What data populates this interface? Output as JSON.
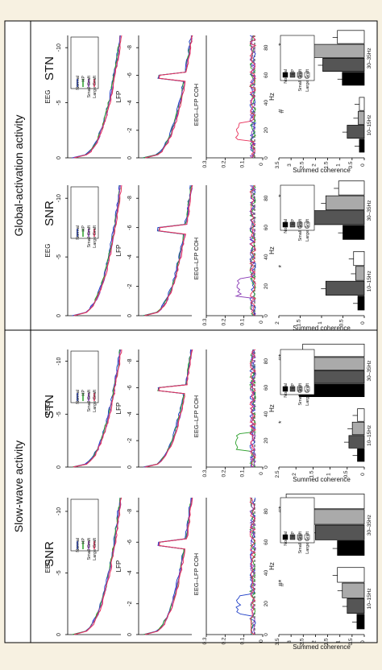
{
  "sections": [
    {
      "title": "Slow-wave activity",
      "key": "slow"
    },
    {
      "title": "Global-activation activity",
      "key": "global"
    }
  ],
  "legend": {
    "items": [
      "Normal",
      "HP",
      "Small Graft",
      "Large Graft"
    ],
    "line_colors": [
      "#2040c8",
      "#2ca02c",
      "#8a3bb5",
      "#e8305a"
    ],
    "bar_fills": [
      "#000000",
      "#555555",
      "#aaaaaa",
      "#ffffff"
    ]
  },
  "labels": {
    "eeg": "EEG",
    "lfp": "LFP",
    "coh": "EEG–LFP COH",
    "hz": "Hz",
    "summed": "Summed coherence",
    "band1": "10–15Hz",
    "band2": "30–35Hz",
    "star": "*",
    "hash": "#"
  },
  "chart_data": [
    {
      "type": "bar",
      "section": "Slow-wave activity",
      "title": "SNR",
      "categories": [
        "10–15Hz",
        "30–35Hz"
      ],
      "series": [
        {
          "name": "Normal",
          "values": [
            0.3,
            1.1
          ]
        },
        {
          "name": "HP",
          "values": [
            0.7,
            2.0
          ]
        },
        {
          "name": "Small Graft",
          "values": [
            0.9,
            2.4
          ]
        },
        {
          "name": "Large Graft",
          "values": [
            1.1,
            3.2
          ]
        }
      ],
      "ylabel": "Summed coherence",
      "ylim": [
        0,
        3.5
      ],
      "yticks": [
        "0",
        "0.5",
        "1",
        "1.5",
        "2",
        "2.5",
        "3",
        "3.5"
      ],
      "markers": [
        "#*",
        "#*"
      ],
      "line_panels": [
        {
          "ylabel": "EEG",
          "yticks": [
            "0",
            "-5",
            "-10"
          ]
        },
        {
          "ylabel": "LFP",
          "yticks": [
            "0",
            "-2",
            "-4",
            "-6",
            "-8"
          ]
        },
        {
          "ylabel": "EEG–LFP COH",
          "yticks": [
            "0",
            "0.1",
            "0.2",
            "0.3"
          ],
          "xticks": [
            "0",
            "20",
            "40",
            "60",
            "80"
          ],
          "xlabel": "Hz"
        }
      ]
    },
    {
      "type": "bar",
      "section": "Slow-wave activity",
      "title": "STN",
      "categories": [
        "10–15Hz",
        "30–35Hz"
      ],
      "series": [
        {
          "name": "Normal",
          "values": [
            0.2,
            1.9
          ]
        },
        {
          "name": "HP",
          "values": [
            0.45,
            1.95
          ]
        },
        {
          "name": "Small Graft",
          "values": [
            0.35,
            1.85
          ]
        },
        {
          "name": "Large Graft",
          "values": [
            0.2,
            1.8
          ]
        }
      ],
      "ylabel": "Summed coherence",
      "ylim": [
        0,
        2.5
      ],
      "yticks": [
        "0",
        "0.5",
        "1",
        "1.5",
        "2",
        "2.5"
      ],
      "markers": [
        "*",
        "#*"
      ],
      "line_panels": [
        {
          "ylabel": "EEG",
          "yticks": [
            "0",
            "-5",
            "-10"
          ]
        },
        {
          "ylabel": "LFP",
          "yticks": [
            "0",
            "-2",
            "-4",
            "-6",
            "-8"
          ]
        },
        {
          "ylabel": "EEG–LFP COH",
          "yticks": [
            "0",
            "0.1",
            "0.2",
            "0.3"
          ],
          "xticks": [
            "0",
            "20",
            "40",
            "60",
            "80"
          ],
          "xlabel": "Hz"
        }
      ]
    },
    {
      "type": "bar",
      "section": "Global-activation activity",
      "title": "SNR",
      "categories": [
        "10–15Hz",
        "30–35Hz"
      ],
      "series": [
        {
          "name": "Normal",
          "values": [
            0.15,
            0.5
          ]
        },
        {
          "name": "HP",
          "values": [
            0.9,
            1.6
          ]
        },
        {
          "name": "Small Graft",
          "values": [
            0.2,
            0.9
          ]
        },
        {
          "name": "Large Graft",
          "values": [
            0.25,
            0.6
          ]
        }
      ],
      "ylabel": "Summed coherence",
      "ylim": [
        0,
        2
      ],
      "yticks": [
        "0",
        "0.5",
        "1",
        "1.5",
        "2"
      ],
      "markers": [
        "*",
        "*"
      ],
      "line_panels": [
        {
          "ylabel": "EEG",
          "yticks": [
            "0",
            "-5",
            "-10"
          ]
        },
        {
          "ylabel": "LFP",
          "yticks": [
            "0",
            "-2",
            "-4",
            "-6",
            "-8"
          ]
        },
        {
          "ylabel": "EEG–LFP COH",
          "yticks": [
            "0",
            "0.1",
            "0.2",
            "0.3"
          ],
          "xticks": [
            "0",
            "20",
            "40",
            "60",
            "80"
          ],
          "xlabel": "Hz"
        }
      ]
    },
    {
      "type": "bar",
      "section": "Global-activation activity",
      "title": "STN",
      "categories": [
        "10–15Hz",
        "30–35Hz"
      ],
      "series": [
        {
          "name": "Normal",
          "values": [
            0.2,
            0.9
          ]
        },
        {
          "name": "HP",
          "values": [
            0.7,
            1.7
          ]
        },
        {
          "name": "Small Graft",
          "values": [
            0.25,
            2.7
          ]
        },
        {
          "name": "Large Graft",
          "values": [
            0.2,
            1.1
          ]
        }
      ],
      "ylabel": "Summed coherence",
      "ylim": [
        0,
        3.5
      ],
      "yticks": [
        "0",
        "0.5",
        "1",
        "1.5",
        "2",
        "2.5",
        "3",
        "3.5"
      ],
      "markers": [
        "#",
        "*"
      ],
      "line_panels": [
        {
          "ylabel": "EEG",
          "yticks": [
            "0",
            "-5",
            "-10"
          ]
        },
        {
          "ylabel": "LFP",
          "yticks": [
            "0",
            "-2",
            "-4",
            "-6",
            "-8"
          ]
        },
        {
          "ylabel": "EEG–LFP COH",
          "yticks": [
            "0",
            "0.1",
            "0.2",
            "0.3"
          ],
          "xticks": [
            "0",
            "20",
            "40",
            "60",
            "80"
          ],
          "xlabel": "Hz"
        }
      ]
    }
  ]
}
